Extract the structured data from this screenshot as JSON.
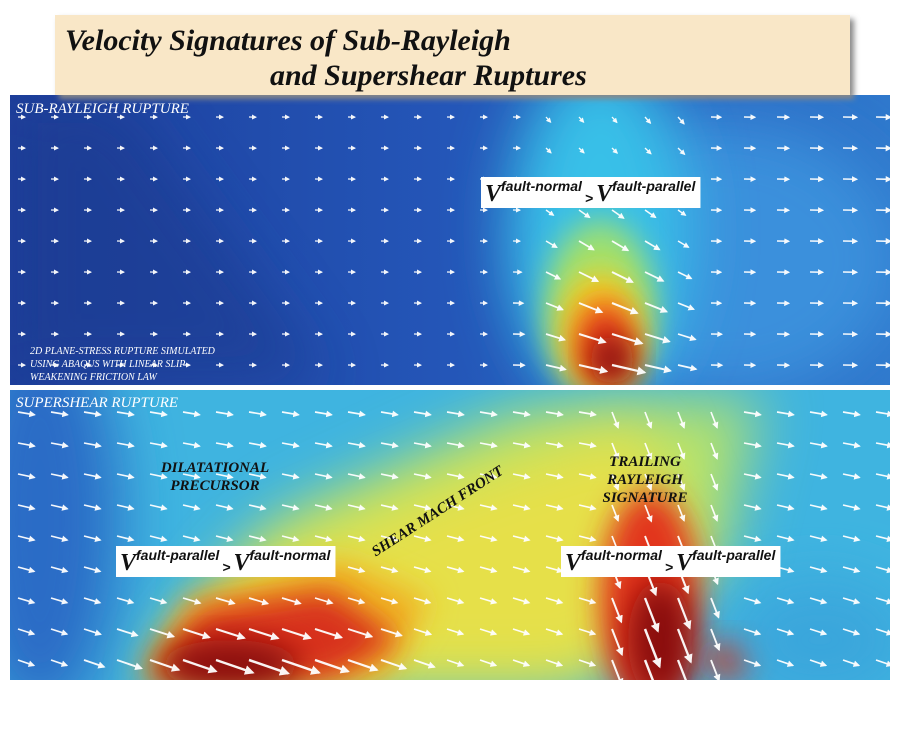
{
  "title": {
    "line1": "Velocity Signatures of Sub-Rayleigh",
    "line2": "and Supershear Ruptures"
  },
  "panels": [
    {
      "label": "SUB-RAYLEIGH RUPTURE",
      "note": [
        "2D PLANE-STRESS RUPTURE SIMULATED",
        "USING ABAQUS WITH LINEAR SLIP-",
        "WEAKENING FRICTION LAW"
      ],
      "annotations": [
        {
          "v1": "V",
          "sup1": "fault-normal",
          "op": ">",
          "v2": "V",
          "sup2": "fault-parallel"
        }
      ]
    },
    {
      "label": "SUPERSHEAR RUPTURE",
      "precursor": [
        "DILATATIONAL",
        "PRECURSOR"
      ],
      "mach_front": "SHEAR MACH FRONT",
      "trailing": [
        "TRAILING",
        "RAYLEIGH",
        "SIGNATURE"
      ],
      "annotations": [
        {
          "v1": "V",
          "sup1": "fault-parallel",
          "op": ">",
          "v2": "V",
          "sup2": "fault-normal"
        },
        {
          "v1": "V",
          "sup1": "fault-normal",
          "op": ">",
          "v2": "V",
          "sup2": "fault-parallel"
        }
      ]
    }
  ]
}
